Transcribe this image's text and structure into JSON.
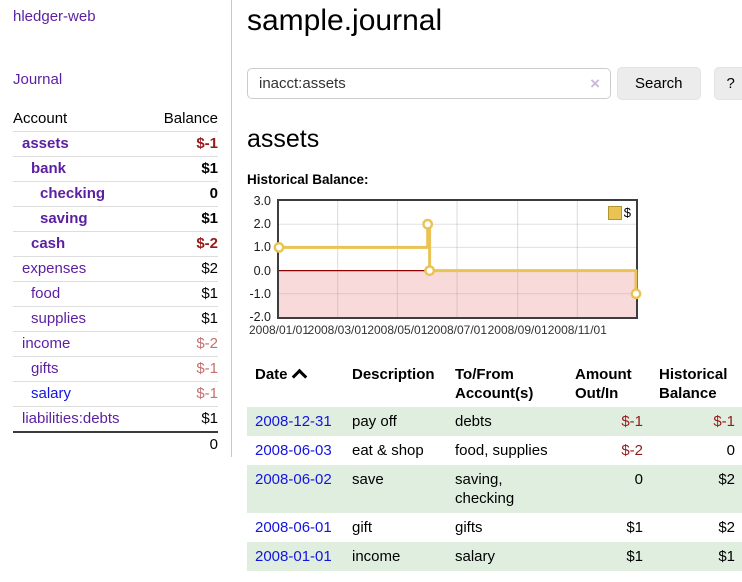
{
  "sidebar": {
    "brand": "hledger-web",
    "nav": [
      {
        "label": "Journal"
      }
    ],
    "accounts_table": {
      "headers": [
        "Account",
        "Balance"
      ],
      "rows": [
        {
          "name": "assets",
          "balance": "$-1",
          "depth": 0,
          "bold": true,
          "neg": "strong",
          "link": "purple"
        },
        {
          "name": "bank",
          "balance": "$1",
          "depth": 1,
          "bold": true,
          "neg": "none",
          "link": "purple"
        },
        {
          "name": "checking",
          "balance": "0",
          "depth": 2,
          "bold": true,
          "neg": "none",
          "link": "purple"
        },
        {
          "name": "saving",
          "balance": "$1",
          "depth": 2,
          "bold": true,
          "neg": "none",
          "link": "purple"
        },
        {
          "name": "cash",
          "balance": "$-2",
          "depth": 1,
          "bold": true,
          "neg": "strong",
          "link": "purple"
        },
        {
          "name": "expenses",
          "balance": "$2",
          "depth": 0,
          "bold": false,
          "neg": "none",
          "link": "purple"
        },
        {
          "name": "food",
          "balance": "$1",
          "depth": 1,
          "bold": false,
          "neg": "none",
          "link": "purple"
        },
        {
          "name": "supplies",
          "balance": "$1",
          "depth": 1,
          "bold": false,
          "neg": "none",
          "link": "purple"
        },
        {
          "name": "income",
          "balance": "$-2",
          "depth": 0,
          "bold": false,
          "neg": "soft",
          "link": "purple"
        },
        {
          "name": "gifts",
          "balance": "$-1",
          "depth": 1,
          "bold": false,
          "neg": "soft",
          "link": "purple"
        },
        {
          "name": "salary",
          "balance": "$-1",
          "depth": 1,
          "bold": false,
          "neg": "soft",
          "link": "blue"
        },
        {
          "name": "liabilities:debts",
          "balance": "$1",
          "depth": 0,
          "bold": false,
          "neg": "none",
          "link": "purple"
        }
      ],
      "total": "0"
    }
  },
  "header": {
    "title": "sample.journal"
  },
  "search": {
    "value": "inacct:assets",
    "clear_icon": "×",
    "button_label": "Search",
    "help_label": "?"
  },
  "account_page": {
    "title": "assets",
    "chart_label": "Historical Balance:"
  },
  "chart_data": {
    "type": "line",
    "step": true,
    "title": "Historical Balance:",
    "series": [
      {
        "name": "$",
        "color": "#e9c353",
        "points": [
          [
            "2008-01-01",
            1
          ],
          [
            "2008-06-01",
            2
          ],
          [
            "2008-06-03",
            0
          ],
          [
            "2008-12-31",
            -1
          ]
        ]
      }
    ],
    "x_range": [
      "2008-01-01",
      "2008-12-31"
    ],
    "x_ticks": [
      {
        "date": "2008-01-01",
        "label": "2008/01/01"
      },
      {
        "date": "2008-03-01",
        "label": "2008/03/01"
      },
      {
        "date": "2008-05-01",
        "label": "2008/05/01"
      },
      {
        "date": "2008-07-01",
        "label": "2008/07/01"
      },
      {
        "date": "2008-09-01",
        "label": "2008/09/01"
      },
      {
        "date": "2008-11-01",
        "label": "2008/11/01"
      }
    ],
    "y_ticks": [
      "3.0",
      "2.0",
      "1.0",
      "0.0",
      "-1.0",
      "-2.0"
    ],
    "ylim": [
      -2,
      3
    ],
    "grid": true,
    "negative_region_fill": "#f9dada",
    "zero_line_color": "#8b0000",
    "legend": [
      {
        "label": "$",
        "color": "#e9c353"
      }
    ],
    "legend_position": "top-right"
  },
  "register_table": {
    "sort_column": "Date",
    "sort_icon": "chevron-up",
    "headers": [
      "Date",
      "Description",
      "To/From Account(s)",
      "Amount Out/In",
      "Historical Balance"
    ],
    "rows": [
      {
        "date": "2008-12-31",
        "description": "pay off",
        "accounts": "debts",
        "amount": "$-1",
        "balance": "$-1",
        "amount_negative": true,
        "balance_negative": true
      },
      {
        "date": "2008-06-03",
        "description": "eat & shop",
        "accounts": "food, supplies",
        "amount": "$-2",
        "balance": "0",
        "amount_negative": true,
        "balance_negative": false
      },
      {
        "date": "2008-06-02",
        "description": "save",
        "accounts": "saving, checking",
        "amount": "0",
        "balance": "$2",
        "amount_negative": false,
        "balance_negative": false
      },
      {
        "date": "2008-06-01",
        "description": "gift",
        "accounts": "gifts",
        "amount": "$1",
        "balance": "$2",
        "amount_negative": false,
        "balance_negative": false
      },
      {
        "date": "2008-01-01",
        "description": "income",
        "accounts": "salary",
        "amount": "$1",
        "balance": "$1",
        "amount_negative": false,
        "balance_negative": false
      }
    ]
  }
}
